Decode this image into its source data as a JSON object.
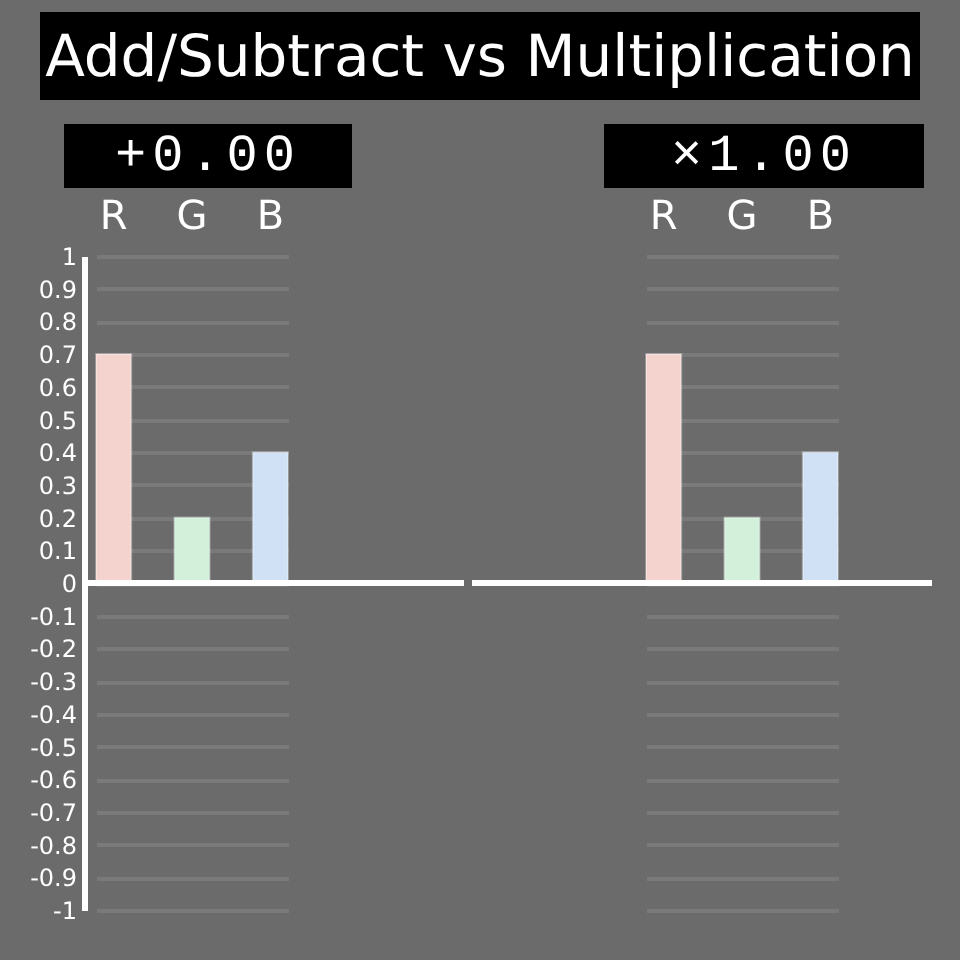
{
  "chart_data": [
    {
      "type": "bar",
      "title": "Add/Subtract vs Multiplication",
      "subtitle": "+0.00",
      "categories": [
        "R",
        "G",
        "B"
      ],
      "values": [
        0.7,
        0.2,
        0.4
      ],
      "colors": [
        "#f4d3ce",
        "#d3f0db",
        "#d0e0f5"
      ],
      "ylim": [
        -1,
        1
      ],
      "yticks": [
        -1,
        -0.9,
        -0.8,
        -0.7,
        -0.6,
        -0.5,
        -0.4,
        -0.3,
        -0.2,
        -0.1,
        0,
        0.1,
        0.2,
        0.3,
        0.4,
        0.5,
        0.6,
        0.7,
        0.8,
        0.9,
        1
      ],
      "grid": "y",
      "ref_lines": [
        {
          "axis": "y",
          "value": 0,
          "color": "#ffffff"
        }
      ]
    },
    {
      "type": "bar",
      "subtitle": "×1.00",
      "categories": [
        "R",
        "G",
        "B"
      ],
      "values": [
        0.7,
        0.2,
        0.4
      ],
      "colors": [
        "#f4d3ce",
        "#d3f0db",
        "#d0e0f5"
      ],
      "ylim": [
        -1,
        1
      ],
      "yticks": [
        -1,
        -0.9,
        -0.8,
        -0.7,
        -0.6,
        -0.5,
        -0.4,
        -0.3,
        -0.2,
        -0.1,
        0,
        0.1,
        0.2,
        0.3,
        0.4,
        0.5,
        0.6,
        0.7,
        0.8,
        0.9,
        1
      ],
      "grid": "y",
      "tick_labels": "x",
      "ref_lines": [
        {
          "axis": "y",
          "value": 0,
          "color": "#ffffff"
        }
      ]
    }
  ]
}
